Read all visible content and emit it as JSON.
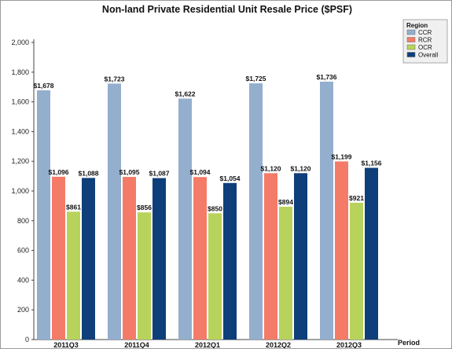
{
  "chart_data": {
    "type": "bar",
    "title": "Non-land Private Residential  Unit Resale Price ($PSF)",
    "xlabel": "Period",
    "ylabel": "",
    "categories": [
      "2011Q3",
      "2011Q4",
      "2012Q1",
      "2012Q2",
      "2012Q3"
    ],
    "ylim": [
      0,
      2000
    ],
    "yticks": [
      0,
      200,
      400,
      600,
      800,
      1000,
      1200,
      1400,
      1600,
      1800,
      2000
    ],
    "ytick_labels": [
      "0",
      "200",
      "400",
      "600",
      "800",
      "1,000",
      "1,200",
      "1,400",
      "1,600",
      "1,800",
      "2,000"
    ],
    "grid": false,
    "legend": {
      "title": "Region",
      "placement": "top-right"
    },
    "series": [
      {
        "name": "CCR",
        "color": "#94AECE",
        "values": [
          1678,
          1723,
          1622,
          1725,
          1736
        ],
        "labels": [
          "$1,678",
          "$1,723",
          "$1,622",
          "$1,725",
          "$1,736"
        ]
      },
      {
        "name": "RCR",
        "color": "#F47B67",
        "values": [
          1096,
          1095,
          1094,
          1120,
          1199
        ],
        "labels": [
          "$1,096",
          "$1,095",
          "$1,094",
          "$1,120",
          "$1,199"
        ]
      },
      {
        "name": "OCR",
        "color": "#B8D35B",
        "values": [
          861,
          856,
          850,
          894,
          921
        ],
        "labels": [
          "$861",
          "$856",
          "$850",
          "$894",
          "$921"
        ]
      },
      {
        "name": "Overall",
        "color": "#0E3F7A",
        "values": [
          1088,
          1087,
          1054,
          1120,
          1156
        ],
        "labels": [
          "$1,088",
          "$1,087",
          "$1,054",
          "$1,120",
          "$1,156"
        ]
      }
    ]
  }
}
